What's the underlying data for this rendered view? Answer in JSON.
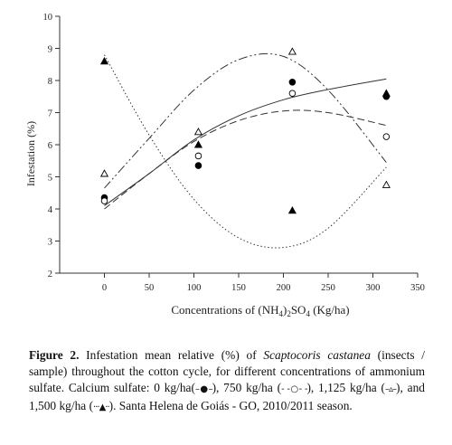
{
  "chart_data": {
    "type": "scatter",
    "xlabel_parts": {
      "before": "Concentrations of (NH",
      "sub1": "4",
      "mid": ")",
      "sub2": "2",
      "after": "SO",
      "sub3": "4",
      "end": " (Kg/ha)"
    },
    "ylabel": "Infestation (%)",
    "xlim": [
      -50,
      350
    ],
    "ylim": [
      2,
      10
    ],
    "xticks": [
      0,
      50,
      100,
      150,
      200,
      250,
      300,
      350
    ],
    "yticks": [
      2,
      3,
      4,
      5,
      6,
      7,
      8,
      9,
      10
    ],
    "grid": false,
    "series": [
      {
        "marker": "filled-circle",
        "line": "solid",
        "x": [
          0,
          105,
          210,
          315
        ],
        "y": [
          4.35,
          5.35,
          7.95,
          7.5
        ],
        "curve_x": [
          0,
          50,
          100,
          150,
          200,
          250,
          315
        ],
        "curve_y": [
          4.1,
          5.1,
          6.15,
          6.9,
          7.4,
          7.72,
          8.05
        ]
      },
      {
        "marker": "open-circle",
        "line": "dashed",
        "x": [
          0,
          105,
          210,
          315
        ],
        "y": [
          4.25,
          5.65,
          7.6,
          6.25
        ],
        "curve_x": [
          0,
          50,
          100,
          150,
          200,
          250,
          315
        ],
        "curve_y": [
          4.0,
          5.1,
          6.1,
          6.75,
          7.05,
          7.0,
          6.6
        ]
      },
      {
        "marker": "open-triangle",
        "line": "dash-dot",
        "x": [
          0,
          105,
          210,
          315
        ],
        "y": [
          5.1,
          6.4,
          8.9,
          4.75
        ],
        "curve_x": [
          0,
          50,
          100,
          150,
          200,
          250,
          315
        ],
        "curve_y": [
          4.65,
          6.2,
          7.7,
          8.65,
          8.75,
          7.7,
          5.45
        ]
      },
      {
        "marker": "filled-triangle",
        "line": "dotted",
        "x": [
          0,
          105,
          210,
          315
        ],
        "y": [
          8.6,
          6.0,
          3.95,
          7.6
        ],
        "curve_x": [
          0,
          50,
          100,
          150,
          200,
          250,
          315
        ],
        "curve_y": [
          8.8,
          6.3,
          4.3,
          3.1,
          2.8,
          3.4,
          5.3
        ]
      }
    ]
  },
  "caption": {
    "label": "Figure 2.",
    "text1": " Infestation mean relative (%) of ",
    "species": "Scaptocoris castanea",
    "text2": " (insects / sample) throughout the cotton cycle, for different concentrations of ammonium sulfate. Calcium sulfate: 0 kg/ha(",
    "sym1": "–●–",
    "text3": "), 750 kg/ha (",
    "sym2": "- -○- -",
    "text4": "), 1,125 kg/ha (",
    "sym3": "–▵–",
    "text5": "), and 1,500 kg/ha (",
    "sym4": "···▲··",
    "text6": "). Santa Helena de Goiás - GO, 2010/2011 season."
  }
}
